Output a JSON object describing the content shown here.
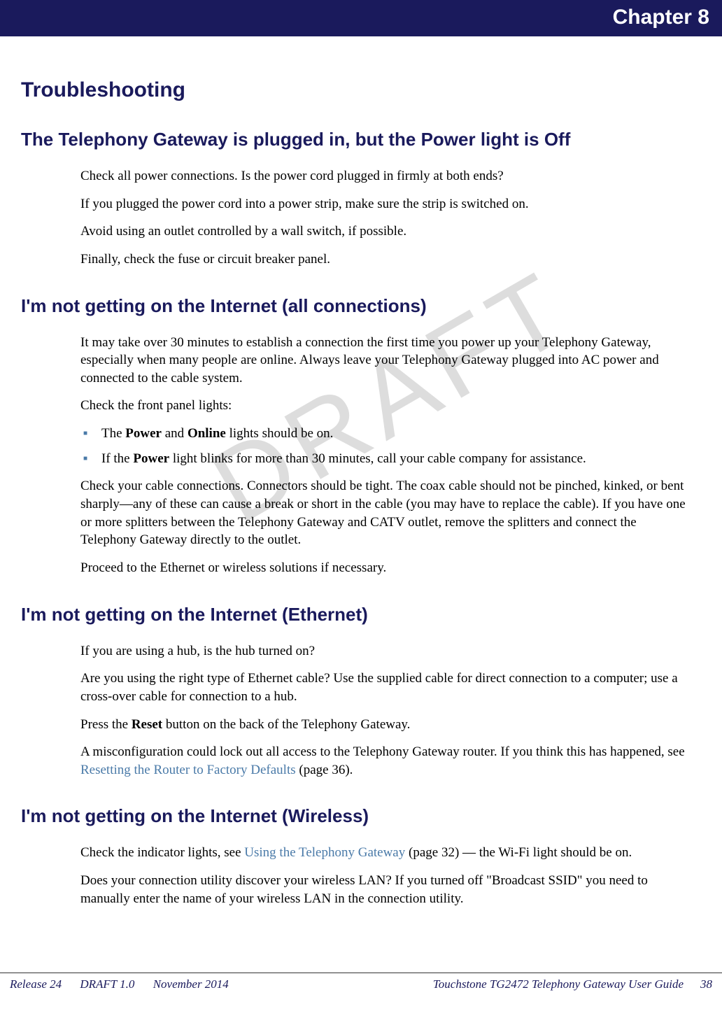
{
  "chapter_label": "Chapter 8",
  "watermark": "DRAFT",
  "title": "Troubleshooting",
  "sections": [
    {
      "heading": "The Telephony Gateway is plugged in, but the Power light is Off",
      "paragraphs": [
        [
          {
            "t": "Check all power connections. Is the power cord plugged in firmly at both ends?"
          }
        ],
        [
          {
            "t": "If you plugged the power cord into a power strip, make sure the strip is switched on."
          }
        ],
        [
          {
            "t": "Avoid using an outlet controlled by a wall switch, if possible."
          }
        ],
        [
          {
            "t": "Finally, check the fuse or circuit breaker panel."
          }
        ]
      ]
    },
    {
      "heading": "I'm not getting on the Internet (all connections)",
      "paragraphs": [
        [
          {
            "t": "It may take over 30 minutes to establish a connection the first time you power up your Telephony Gateway, especially when many people are online. Always leave your Telephony Gateway plugged into AC power and connected to the cable system."
          }
        ],
        [
          {
            "t": "Check the front panel lights:"
          }
        ]
      ],
      "bullets": [
        [
          {
            "t": "The "
          },
          {
            "t": "Power",
            "b": true
          },
          {
            "t": " and "
          },
          {
            "t": "Online",
            "b": true
          },
          {
            "t": " lights should be on."
          }
        ],
        [
          {
            "t": "If the "
          },
          {
            "t": "Power",
            "b": true
          },
          {
            "t": " light blinks for more than 30 minutes, call your cable company for assistance."
          }
        ]
      ],
      "paragraphs_after": [
        [
          {
            "t": "Check your cable connections. Connectors should be tight. The coax cable should not be pinched, kinked, or bent sharply—any of these can cause a break or short in the cable (you may have to replace the cable). If you have one or more splitters between the Telephony Gateway and CATV outlet, remove the splitters and connect the Telephony Gateway directly to the outlet."
          }
        ],
        [
          {
            "t": "Proceed to the Ethernet or wireless solutions if necessary."
          }
        ]
      ]
    },
    {
      "heading": "I'm not getting on the Internet (Ethernet)",
      "paragraphs": [
        [
          {
            "t": "If you are using a hub, is the hub turned on?"
          }
        ],
        [
          {
            "t": "Are you using the right type of Ethernet cable? Use the supplied cable for direct connection to a computer; use a cross-over cable for connection to a hub."
          }
        ],
        [
          {
            "t": "Press the "
          },
          {
            "t": "Reset",
            "b": true
          },
          {
            "t": " button on the back of the Telephony Gateway."
          }
        ],
        [
          {
            "t": "A misconfiguration could lock out all access to the Telephony Gateway router. If you think this has happened, see "
          },
          {
            "t": "Resetting the Router to Factory Defaults",
            "link": true
          },
          {
            "t": " (page 36)."
          }
        ]
      ]
    },
    {
      "heading": "I'm not getting on the Internet (Wireless)",
      "paragraphs": [
        [
          {
            "t": "Check the indicator lights, see "
          },
          {
            "t": "Using the Telephony Gateway",
            "link": true
          },
          {
            "t": " (page 32) — the Wi-Fi light should be on."
          }
        ],
        [
          {
            "t": "Does your connection utility discover your wireless LAN? If you turned off \"Broadcast SSID\" you need to manually enter the name of your wireless LAN in the connection utility."
          }
        ]
      ]
    }
  ],
  "footer": {
    "release": "Release 24",
    "draft": "DRAFT 1.0",
    "date": "November 2014",
    "doc_title": "Touchstone TG2472 Telephony Gateway User Guide",
    "page": "38"
  },
  "colors": {
    "header_bg": "#1a1a5c",
    "heading": "#1a1a5c",
    "link": "#4a7aa8",
    "bullet": "#4a7aa8",
    "watermark": "#dddddd"
  }
}
